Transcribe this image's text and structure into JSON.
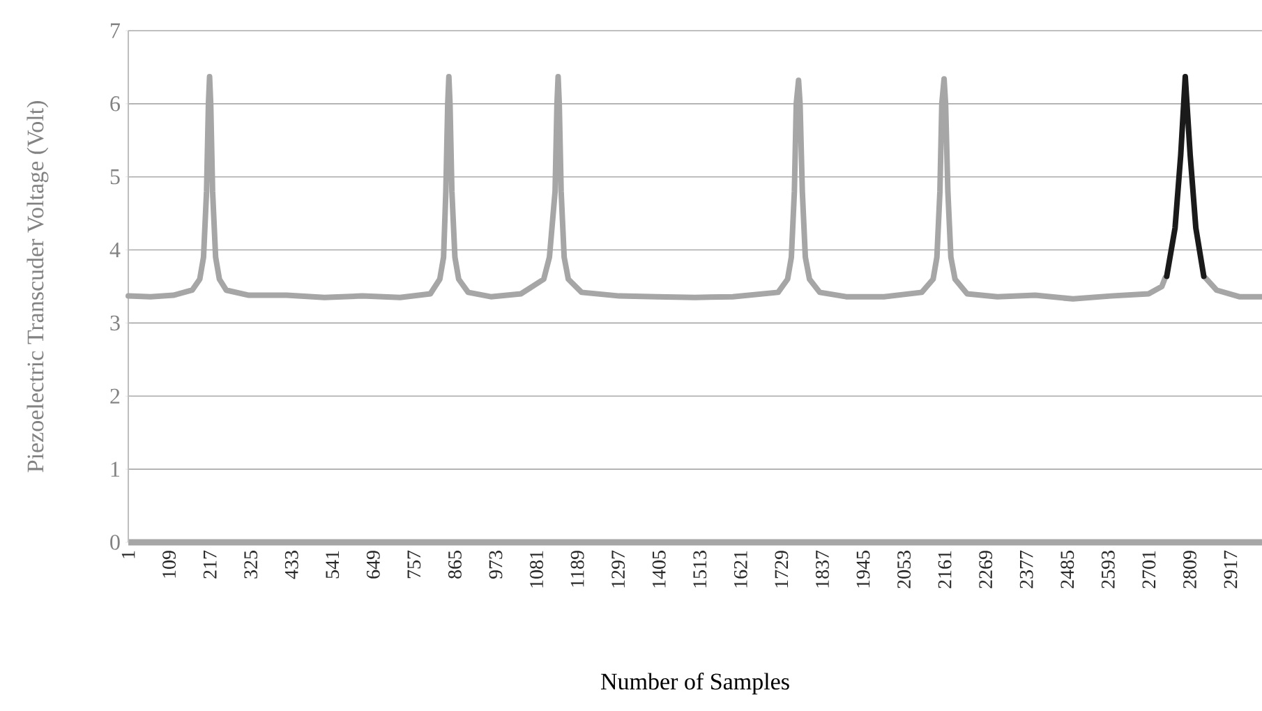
{
  "chart_data": {
    "type": "line",
    "xlabel": "Number of Samples",
    "ylabel": "Piezoelectric Transcuder Voltage (Volt)",
    "xlim": [
      1,
      3000
    ],
    "ylim": [
      0,
      7
    ],
    "xticks": [
      1,
      109,
      217,
      325,
      433,
      541,
      649,
      757,
      865,
      973,
      1081,
      1189,
      1297,
      1405,
      1513,
      1621,
      1729,
      1837,
      1945,
      2053,
      2161,
      2269,
      2377,
      2485,
      2593,
      2701,
      2809,
      2917
    ],
    "yticks": [
      0,
      1,
      2,
      3,
      4,
      5,
      6,
      7
    ],
    "grid": "y",
    "series": [
      {
        "color": "#a6a6a6",
        "x": [
          1,
          60,
          120,
          170,
          190,
          200,
          208,
          213,
          216,
          219,
          224,
          232,
          242,
          260,
          320,
          420,
          520,
          620,
          720,
          800,
          825,
          835,
          841,
          846,
          849,
          852,
          857,
          865,
          875,
          900,
          960,
          1040,
          1100,
          1115,
          1130,
          1135,
          1138,
          1141,
          1146,
          1154,
          1165,
          1200,
          1300,
          1400,
          1500,
          1600,
          1720,
          1745,
          1755,
          1763,
          1768,
          1774,
          1778,
          1784,
          1792,
          1803,
          1830,
          1900,
          2000,
          2100,
          2130,
          2140,
          2148,
          2153,
          2159,
          2163,
          2169,
          2177,
          2188,
          2220,
          2300,
          2400,
          2500,
          2600,
          2700,
          2735,
          2744,
          2797,
          2850,
          2880,
          2940,
          3000
        ],
        "values": [
          3.37,
          3.36,
          3.38,
          3.45,
          3.6,
          3.9,
          4.8,
          6.0,
          6.37,
          6.0,
          4.8,
          3.9,
          3.6,
          3.45,
          3.38,
          3.38,
          3.35,
          3.37,
          3.35,
          3.4,
          3.6,
          3.9,
          4.8,
          6.0,
          6.37,
          6.0,
          4.8,
          3.9,
          3.6,
          3.42,
          3.36,
          3.4,
          3.6,
          3.9,
          4.8,
          6.0,
          6.37,
          6.0,
          4.8,
          3.9,
          3.6,
          3.42,
          3.37,
          3.36,
          3.35,
          3.36,
          3.42,
          3.6,
          3.9,
          4.8,
          6.0,
          6.32,
          6.0,
          4.8,
          3.9,
          3.6,
          3.42,
          3.36,
          3.36,
          3.42,
          3.6,
          3.9,
          4.8,
          6.0,
          6.34,
          6.0,
          4.8,
          3.9,
          3.6,
          3.4,
          3.36,
          3.38,
          3.33,
          3.37,
          3.4,
          3.5,
          3.62,
          null,
          3.62,
          3.45,
          3.36,
          3.36
        ]
      },
      {
        "color": "#1a1a1a",
        "x": [
          2748,
          2770,
          2785,
          2797,
          2810,
          2825,
          2846
        ],
        "values": [
          3.64,
          4.3,
          5.3,
          6.37,
          5.3,
          4.3,
          3.64
        ]
      }
    ]
  }
}
